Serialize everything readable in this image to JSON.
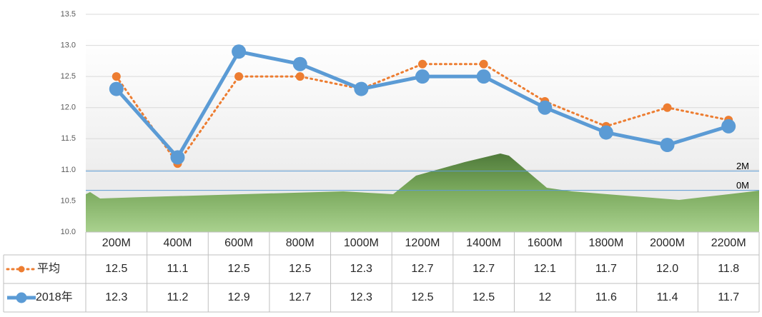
{
  "chart_data": {
    "type": "line",
    "categories": [
      "200M",
      "400M",
      "600M",
      "800M",
      "1000M",
      "1200M",
      "1400M",
      "1600M",
      "1800M",
      "2000M",
      "2200M"
    ],
    "series": [
      {
        "name": "平均",
        "color": "#ed7d31",
        "values": [
          12.5,
          11.1,
          12.5,
          12.5,
          12.3,
          12.7,
          12.7,
          12.1,
          11.7,
          12.0,
          11.8
        ],
        "value_labels": [
          "12.5",
          "11.1",
          "12.5",
          "12.5",
          "12.3",
          "12.7",
          "12.7",
          "12.1",
          "11.7",
          "12.0",
          "11.8"
        ]
      },
      {
        "name": "2018年",
        "color": "#5b9bd5",
        "values": [
          12.3,
          11.2,
          12.9,
          12.7,
          12.3,
          12.5,
          12.5,
          12,
          11.6,
          11.4,
          11.7
        ],
        "value_labels": [
          "12.3",
          "11.2",
          "12.9",
          "12.7",
          "12.3",
          "12.5",
          "12.5",
          "12",
          "11.6",
          "11.4",
          "11.7"
        ]
      }
    ],
    "ylim": [
      10,
      13.5
    ],
    "yticks": [
      {
        "value": 10,
        "label": "10.0"
      },
      10.5,
      {
        "value": 11,
        "label": "11.0"
      },
      11.5,
      {
        "value": 12,
        "label": "12.0"
      },
      12.5,
      {
        "value": 13,
        "label": "13.0"
      },
      13.5
    ],
    "grid": true,
    "reference_lines": [
      {
        "text": "2M",
        "y": 10.98,
        "color": "#5b9bd5"
      },
      {
        "text": "0M",
        "y": 10.67,
        "color": "#5b9bd5"
      }
    ]
  }
}
